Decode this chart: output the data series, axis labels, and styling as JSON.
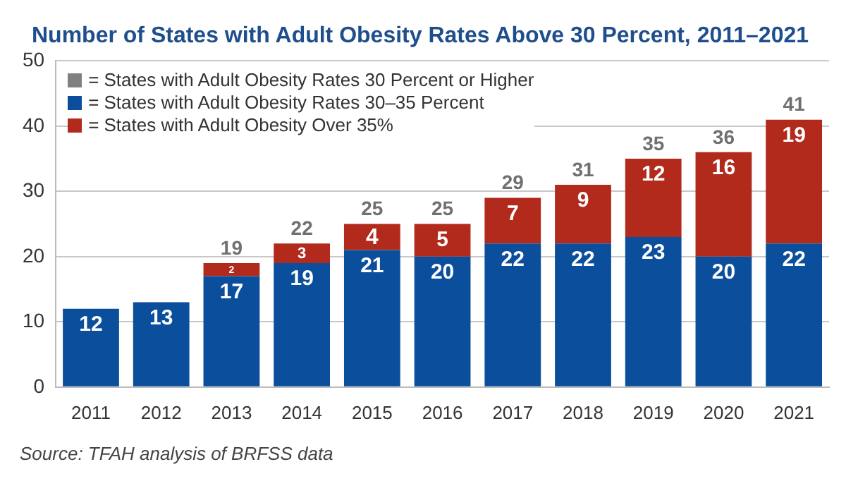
{
  "chart_data": {
    "type": "bar",
    "title": "Number of States with Adult Obesity Rates Above 30 Percent, 2011–2021",
    "categories": [
      "2011",
      "2012",
      "2013",
      "2014",
      "2015",
      "2016",
      "2017",
      "2018",
      "2019",
      "2020",
      "2021"
    ],
    "series": [
      {
        "name": "= States with Adult Obesity Rates 30 Percent or Higher",
        "color": "#808080",
        "values": [
          null,
          null,
          null,
          null,
          null,
          null,
          null,
          null,
          null,
          null,
          null
        ]
      },
      {
        "name": "= States with Adult Obesity Rates 30–35 Percent",
        "color": "#0b4f9c",
        "values": [
          12,
          13,
          17,
          19,
          21,
          20,
          22,
          22,
          23,
          20,
          22
        ]
      },
      {
        "name": "= States with Adult Obesity Over 35%",
        "color": "#b22a1c",
        "values": [
          null,
          null,
          2,
          3,
          4,
          5,
          7,
          9,
          12,
          16,
          19
        ]
      }
    ],
    "stacked": true,
    "data_labels": true,
    "totals": [
      null,
      null,
      "19",
      "22",
      "25",
      "25",
      "29",
      "31",
      "35",
      "36",
      "41"
    ],
    "ylim": [
      0,
      50
    ],
    "yticks": [
      0,
      10,
      20,
      30,
      40,
      50
    ],
    "grid": "y",
    "legend": "top left",
    "annotations": [
      "Source: TFAH analysis of BRFSS data"
    ]
  }
}
